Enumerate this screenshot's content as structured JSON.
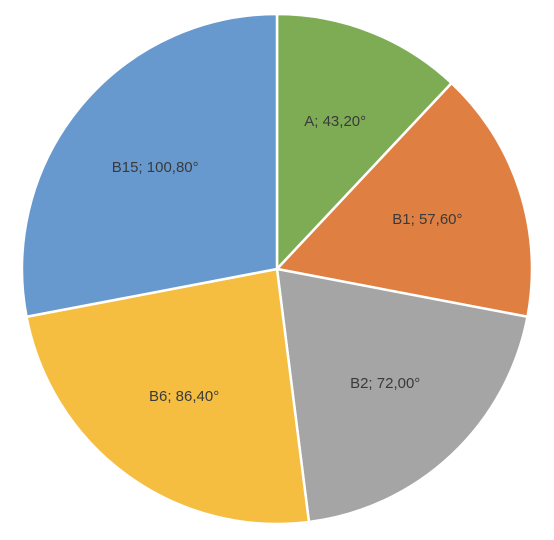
{
  "chart_data": {
    "type": "pie",
    "start_angle": "12 o'clock",
    "direction": "clockwise",
    "slices": [
      {
        "name": "A",
        "value": 43.2,
        "label": "A; 43,20°",
        "color": "#7eac55"
      },
      {
        "name": "B1",
        "value": 57.6,
        "label": "B1; 57,60°",
        "color": "#e07f42"
      },
      {
        "name": "B2",
        "value": 72.0,
        "label": "B2; 72,00°",
        "color": "#a5a5a5"
      },
      {
        "name": "B6",
        "value": 86.4,
        "label": "B6; 86,40°",
        "color": "#f5be41"
      },
      {
        "name": "B15",
        "value": 100.8,
        "label": "B15; 100,80°",
        "color": "#6799cf"
      }
    ]
  }
}
